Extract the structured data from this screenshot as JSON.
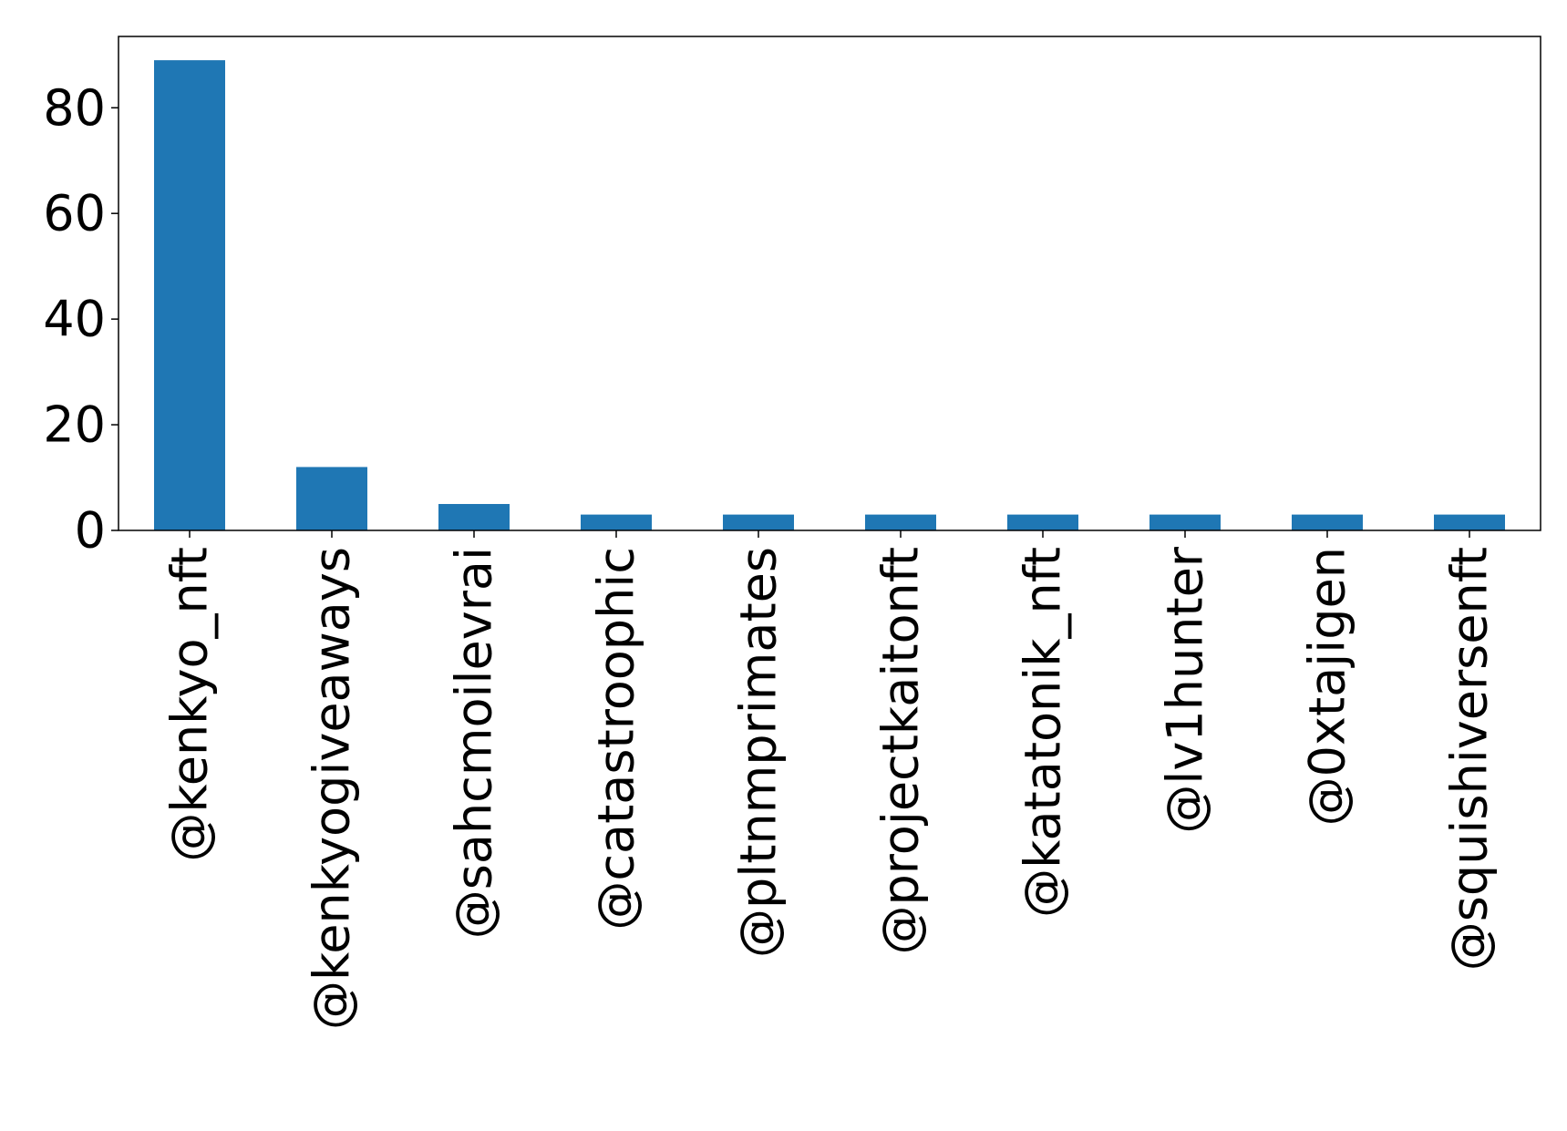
{
  "chart_data": {
    "type": "bar",
    "title": "",
    "xlabel": "",
    "ylabel": "",
    "categories": [
      "@kenkyo_nft",
      "@kenkyogiveaways",
      "@sahcmoilevrai",
      "@catastroophic",
      "@pltnmprimates",
      "@projectkaitonft",
      "@katatonik_nft",
      "@lv1hunter",
      "@0xtajigen",
      "@squishiversenft"
    ],
    "values": [
      89,
      12,
      5,
      3,
      3,
      3,
      3,
      3,
      3,
      3
    ],
    "ylim": [
      0,
      93.5
    ],
    "yticks": [
      0,
      20,
      40,
      60,
      80
    ],
    "grid": false,
    "legend": "none",
    "colors": {
      "bar": "#1f77b4",
      "axis": "#000000",
      "background": "#ffffff"
    }
  }
}
